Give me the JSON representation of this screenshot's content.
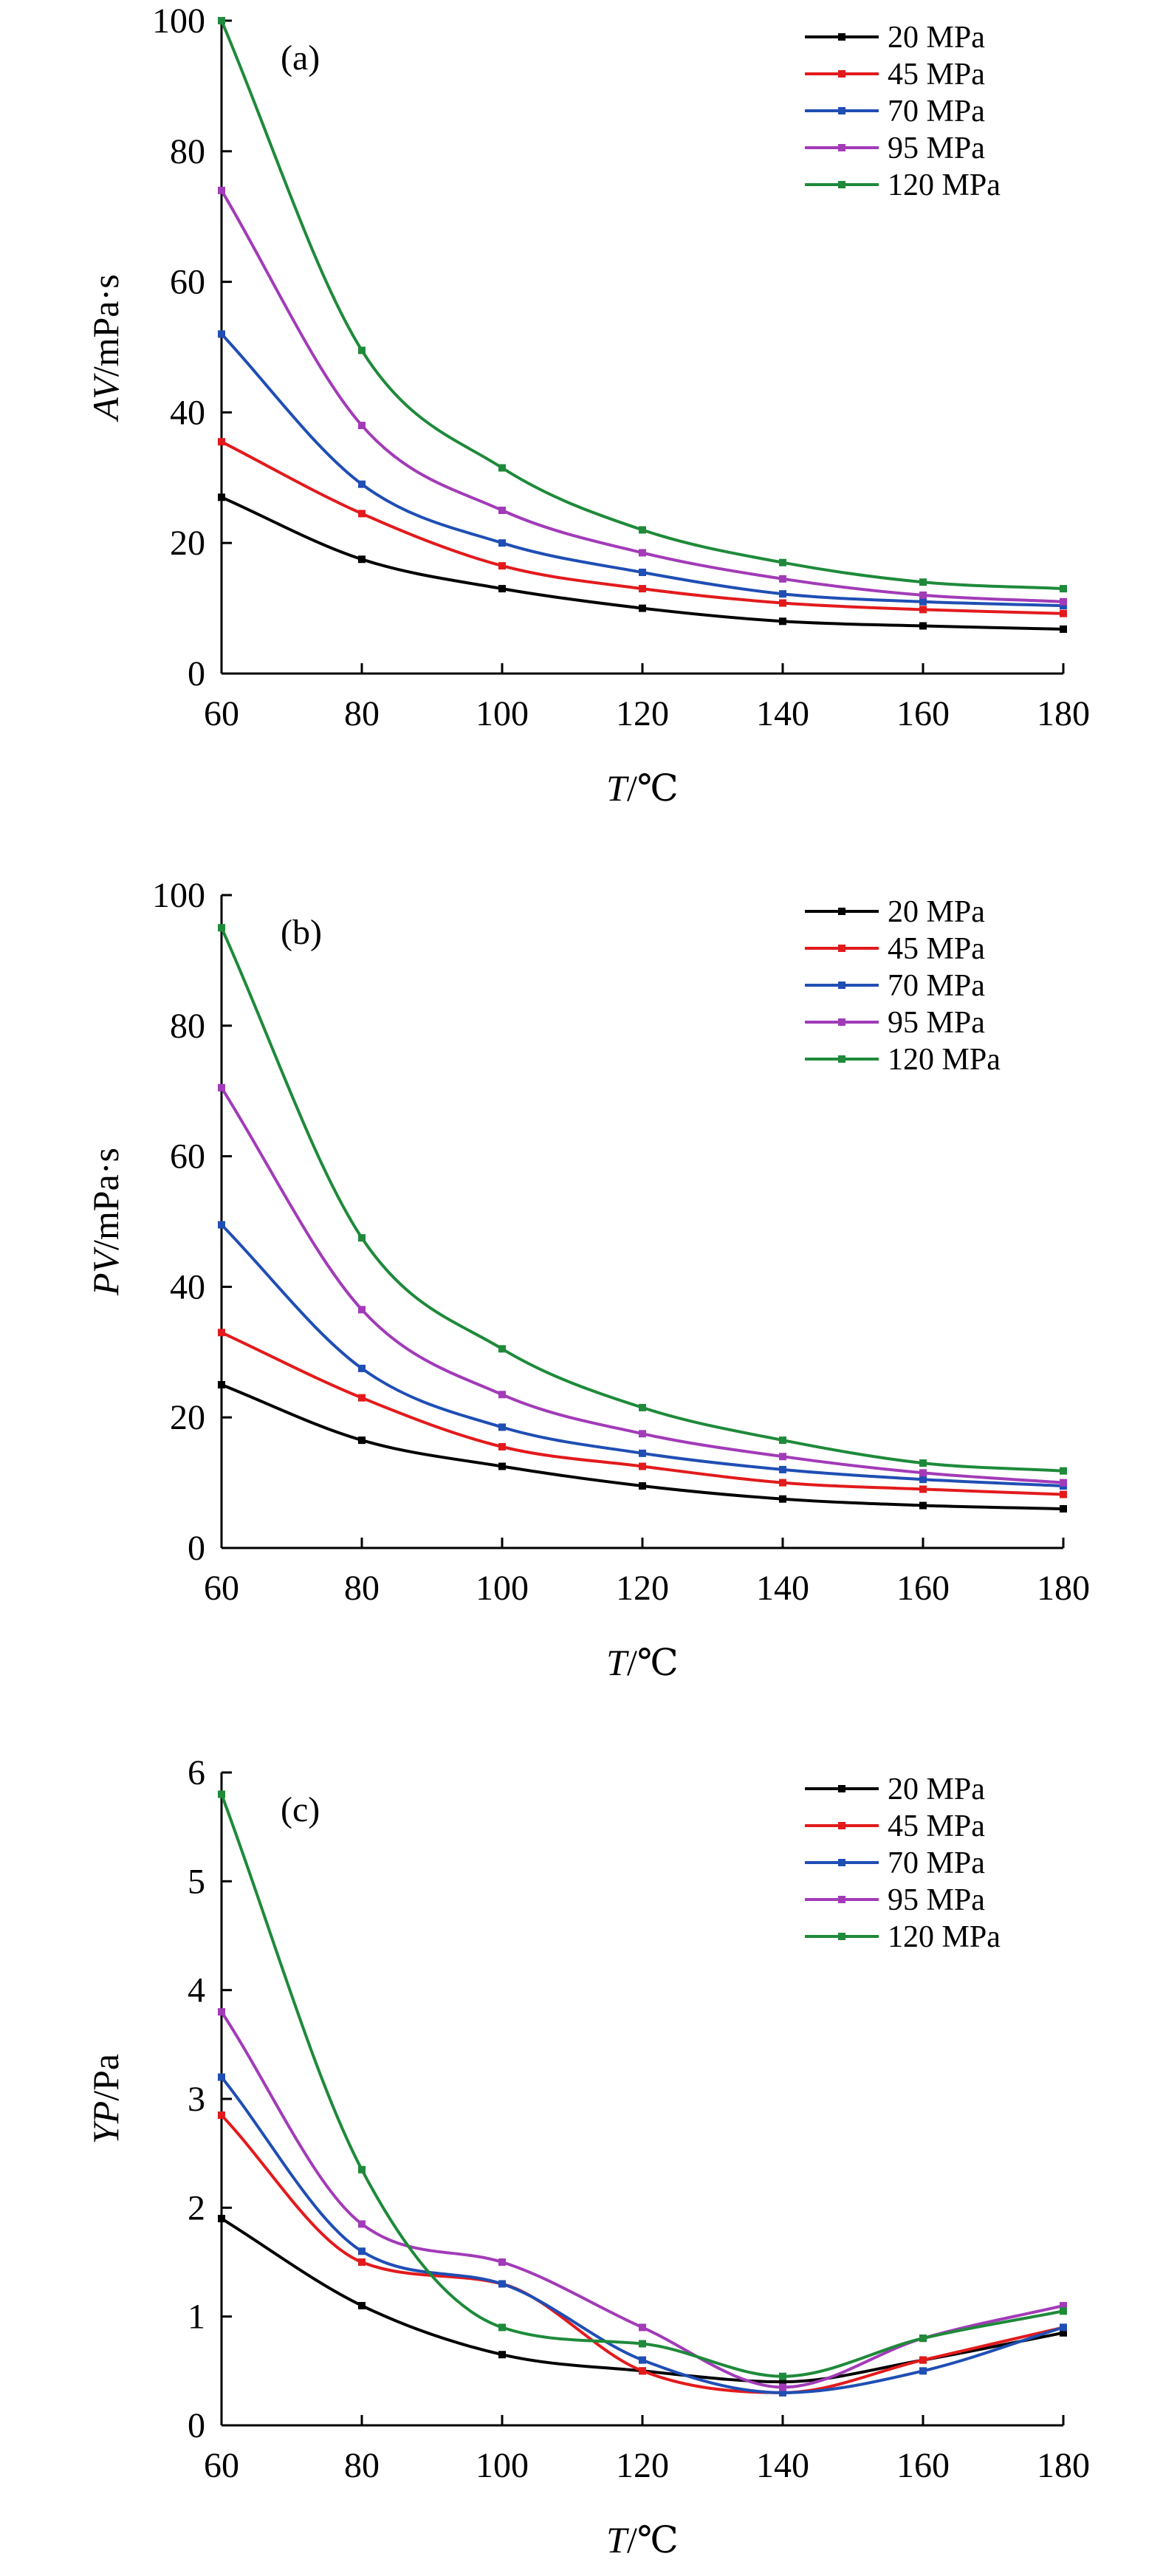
{
  "chart_data": [
    {
      "type": "line",
      "panel_label": "(a)",
      "ylabel_italic": "AV",
      "ylabel_unit": "/mPa·s",
      "xlabel_italic": "T",
      "xlabel_unit": "/℃",
      "xlim": [
        60,
        180
      ],
      "ylim": [
        0,
        100
      ],
      "xticks": [
        60,
        80,
        100,
        120,
        140,
        160,
        180
      ],
      "yticks": [
        0,
        20,
        40,
        60,
        80,
        100
      ],
      "legend_position": "top-right",
      "x": [
        60,
        80,
        100,
        120,
        140,
        160,
        180
      ],
      "series": [
        {
          "name": "20 MPa",
          "color": "#000000",
          "values": [
            27,
            17.5,
            13,
            10,
            8,
            7.3,
            6.8
          ]
        },
        {
          "name": "45 MPa",
          "color": "#e31a1c",
          "values": [
            35.5,
            24.5,
            16.5,
            13,
            10.8,
            9.8,
            9.2
          ]
        },
        {
          "name": "70 MPa",
          "color": "#1f4eb4",
          "values": [
            52,
            29,
            20,
            15.5,
            12.2,
            11,
            10.4
          ]
        },
        {
          "name": "95 MPa",
          "color": "#a23bb8",
          "values": [
            74,
            38,
            25,
            18.5,
            14.5,
            12,
            11
          ]
        },
        {
          "name": "120 MPa",
          "color": "#1e8a3a",
          "values": [
            100,
            49.5,
            31.5,
            22,
            17,
            14,
            13
          ]
        }
      ]
    },
    {
      "type": "line",
      "panel_label": "(b)",
      "ylabel_italic": "PV",
      "ylabel_unit": "/mPa·s",
      "xlabel_italic": "T",
      "xlabel_unit": "/℃",
      "xlim": [
        60,
        180
      ],
      "ylim": [
        0,
        100
      ],
      "xticks": [
        60,
        80,
        100,
        120,
        140,
        160,
        180
      ],
      "yticks": [
        0,
        20,
        40,
        60,
        80,
        100
      ],
      "legend_position": "top-right",
      "x": [
        60,
        80,
        100,
        120,
        140,
        160,
        180
      ],
      "series": [
        {
          "name": "20 MPa",
          "color": "#000000",
          "values": [
            25,
            16.5,
            12.5,
            9.5,
            7.5,
            6.5,
            6
          ]
        },
        {
          "name": "45 MPa",
          "color": "#e31a1c",
          "values": [
            33,
            23,
            15.5,
            12.5,
            10,
            9,
            8.2
          ]
        },
        {
          "name": "70 MPa",
          "color": "#1f4eb4",
          "values": [
            49.5,
            27.5,
            18.5,
            14.5,
            12,
            10.5,
            9.5
          ]
        },
        {
          "name": "95 MPa",
          "color": "#a23bb8",
          "values": [
            70.5,
            36.5,
            23.5,
            17.5,
            14,
            11.5,
            10
          ]
        },
        {
          "name": "120 MPa",
          "color": "#1e8a3a",
          "values": [
            95,
            47.5,
            30.5,
            21.5,
            16.5,
            13,
            11.8
          ]
        }
      ]
    },
    {
      "type": "line",
      "panel_label": "(c)",
      "ylabel_italic": "YP",
      "ylabel_unit": "/Pa",
      "xlabel_italic": "T",
      "xlabel_unit": "/℃",
      "xlim": [
        60,
        180
      ],
      "ylim": [
        0,
        6
      ],
      "xticks": [
        60,
        80,
        100,
        120,
        140,
        160,
        180
      ],
      "yticks": [
        0,
        1,
        2,
        3,
        4,
        5,
        6
      ],
      "legend_position": "top-right",
      "x": [
        60,
        80,
        100,
        120,
        140,
        160,
        180
      ],
      "series": [
        {
          "name": "20 MPa",
          "color": "#000000",
          "values": [
            1.9,
            1.1,
            0.65,
            0.5,
            0.4,
            0.6,
            0.85
          ]
        },
        {
          "name": "45 MPa",
          "color": "#e31a1c",
          "values": [
            2.85,
            1.5,
            1.3,
            0.5,
            0.3,
            0.6,
            0.9
          ]
        },
        {
          "name": "70 MPa",
          "color": "#1f4eb4",
          "values": [
            3.2,
            1.6,
            1.3,
            0.6,
            0.3,
            0.5,
            0.9
          ]
        },
        {
          "name": "95 MPa",
          "color": "#a23bb8",
          "values": [
            3.8,
            1.85,
            1.5,
            0.9,
            0.35,
            0.8,
            1.1
          ]
        },
        {
          "name": "120 MPa",
          "color": "#1e8a3a",
          "values": [
            5.8,
            2.35,
            0.9,
            0.75,
            0.45,
            0.8,
            1.05
          ]
        }
      ]
    }
  ]
}
